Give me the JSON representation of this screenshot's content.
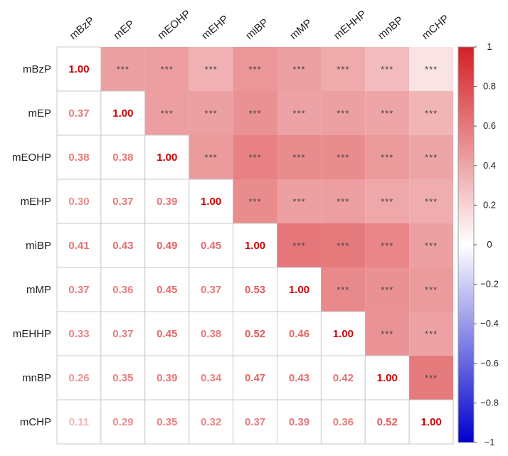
{
  "chart_data": {
    "type": "heatmap",
    "title": "",
    "variables": [
      "mBzP",
      "mEP",
      "mEOHP",
      "mEHP",
      "miBP",
      "mMP",
      "mEHHP",
      "mnBP",
      "mCHP"
    ],
    "matrix": [
      [
        1.0,
        0.37,
        0.38,
        0.3,
        0.41,
        0.37,
        0.33,
        0.26,
        0.11
      ],
      [
        0.37,
        1.0,
        0.38,
        0.37,
        0.43,
        0.36,
        0.37,
        0.35,
        0.29
      ],
      [
        0.38,
        0.38,
        1.0,
        0.39,
        0.49,
        0.45,
        0.45,
        0.39,
        0.35
      ],
      [
        0.3,
        0.37,
        0.39,
        1.0,
        0.45,
        0.37,
        0.38,
        0.34,
        0.32
      ],
      [
        0.41,
        0.43,
        0.49,
        0.45,
        1.0,
        0.53,
        0.52,
        0.47,
        0.37
      ],
      [
        0.37,
        0.36,
        0.45,
        0.37,
        0.53,
        1.0,
        0.46,
        0.43,
        0.39
      ],
      [
        0.33,
        0.37,
        0.45,
        0.38,
        0.52,
        0.46,
        1.0,
        0.42,
        0.36
      ],
      [
        0.26,
        0.35,
        0.39,
        0.34,
        0.47,
        0.43,
        0.42,
        1.0,
        0.52
      ],
      [
        0.11,
        0.29,
        0.35,
        0.32,
        0.37,
        0.39,
        0.36,
        0.52,
        1.0
      ]
    ],
    "lower_triangle": "coefficient",
    "upper_triangle": "significance",
    "significance_label": "***",
    "colorbar": {
      "range": [
        -1,
        1
      ],
      "ticks": [
        "1",
        "0.8",
        "0.6",
        "0.4",
        "0.2",
        "0",
        "−0.2",
        "−0.4",
        "−0.6",
        "−0.8",
        "−1"
      ],
      "colors": {
        "negative": "#0000cc",
        "mid": "#ffffff",
        "positive": "#d42025"
      }
    },
    "colors": {
      "coef_text": "#e05a5a",
      "diag_text": "#cc0000",
      "grid": "#c9c9c9"
    }
  }
}
